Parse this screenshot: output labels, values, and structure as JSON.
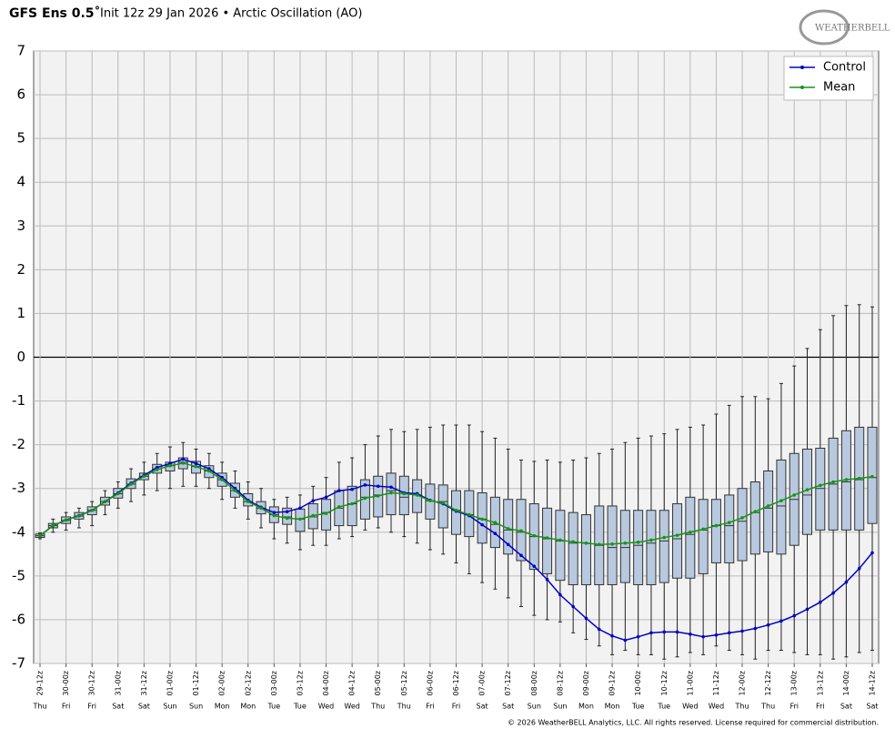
{
  "chart_data": {
    "type": "box",
    "title": "GFS Ens 0.5˚",
    "subtitle": "Init 12z 29 Jan 2026 • Arctic Oscillation (AO)",
    "logo": "WEATHERBELL",
    "footer": "© 2026 WeatherBELL Analytics, LLC. All rights reserved. License required for commercial distribution.",
    "categories": [
      "29-12z",
      null,
      "30-00z",
      null,
      "30-12z",
      null,
      "31-00z",
      null,
      "31-12z",
      null,
      "01-00z",
      null,
      "01-12z",
      null,
      "02-00z",
      null,
      "02-12z",
      null,
      "03-00z",
      null,
      "03-12z",
      null,
      "04-00z",
      null,
      "04-12z",
      null,
      "05-00z",
      null,
      "05-12z",
      null,
      "06-00z",
      null,
      "06-12z",
      null,
      "07-00z",
      null,
      "07-12z",
      null,
      "08-00z",
      null,
      "08-12z",
      null,
      "09-00z",
      null,
      "09-12z",
      null,
      "10-00z",
      null,
      "10-12z",
      null,
      "11-00z",
      null,
      "11-12z",
      null,
      "12-00z",
      null,
      "12-12z",
      null,
      "13-00z",
      null,
      "13-12z",
      null,
      "14-00z",
      null,
      "14-12z"
    ],
    "day_labels": [
      "Thu",
      null,
      "Fri",
      null,
      "Fri",
      null,
      "Sat",
      null,
      "Sat",
      null,
      "Sun",
      null,
      "Sun",
      null,
      "Mon",
      null,
      "Mon",
      null,
      "Tue",
      null,
      "Tue",
      null,
      "Wed",
      null,
      "Wed",
      null,
      "Thu",
      null,
      "Thu",
      null,
      "Fri",
      null,
      "Fri",
      null,
      "Sat",
      null,
      "Sat",
      null,
      "Sun",
      null,
      "Sun",
      null,
      "Mon",
      null,
      "Mon",
      null,
      "Tue",
      null,
      "Tue",
      null,
      "Wed",
      null,
      "Wed",
      null,
      "Thu",
      null,
      "Thu",
      null,
      "Fri",
      null,
      "Fri",
      null,
      "Sat",
      null,
      "Sat"
    ],
    "ylim": [
      -7,
      7
    ],
    "yticks": [
      -7,
      -6,
      -5,
      -4,
      -3,
      -2,
      -1,
      0,
      1,
      2,
      3,
      4,
      5,
      6,
      7
    ],
    "grid": true,
    "legend": "upper right",
    "boxes": {
      "color": "#b8c9df",
      "min": [
        -4.15,
        -4.0,
        -3.95,
        -3.9,
        -3.85,
        -3.6,
        -3.45,
        -3.3,
        -3.15,
        -3.05,
        -3.0,
        -2.95,
        -2.95,
        -3.0,
        -3.25,
        -3.45,
        -3.7,
        -3.9,
        -4.15,
        -4.25,
        -4.4,
        -4.3,
        -4.3,
        -4.15,
        -4.1,
        -3.95,
        -3.9,
        -4.0,
        -4.1,
        -4.25,
        -4.4,
        -4.5,
        -4.7,
        -4.95,
        -5.15,
        -5.3,
        -5.5,
        -5.7,
        -5.9,
        -6.0,
        -6.05,
        -6.3,
        -6.45,
        -6.6,
        -6.8,
        -6.7,
        -6.8,
        -6.8,
        -6.9,
        -6.85,
        -6.75,
        -6.8,
        -6.6,
        -6.7,
        -6.8,
        -6.9,
        -6.7,
        -6.7,
        -6.75,
        -6.8,
        -6.8,
        -6.9,
        -6.85,
        -6.75,
        -6.7
      ],
      "q1": [
        -4.12,
        -3.9,
        -3.8,
        -3.7,
        -3.6,
        -3.38,
        -3.22,
        -3.0,
        -2.8,
        -2.65,
        -2.6,
        -2.55,
        -2.65,
        -2.75,
        -2.95,
        -3.2,
        -3.4,
        -3.58,
        -3.78,
        -3.82,
        -3.98,
        -3.92,
        -3.95,
        -3.85,
        -3.85,
        -3.7,
        -3.65,
        -3.6,
        -3.6,
        -3.55,
        -3.7,
        -3.9,
        -4.05,
        -4.1,
        -4.25,
        -4.35,
        -4.5,
        -4.65,
        -4.85,
        -4.95,
        -5.1,
        -5.2,
        -5.2,
        -5.2,
        -5.2,
        -5.15,
        -5.2,
        -5.2,
        -5.15,
        -5.05,
        -5.05,
        -4.95,
        -4.7,
        -4.7,
        -4.65,
        -4.5,
        -4.45,
        -4.5,
        -4.3,
        -4.05,
        -3.95,
        -3.95,
        -3.95,
        -3.95,
        -3.8
      ],
      "median": [
        -4.08,
        -3.85,
        -3.73,
        -3.63,
        -3.5,
        -3.3,
        -3.12,
        -2.9,
        -2.72,
        -2.55,
        -2.48,
        -2.4,
        -2.5,
        -2.6,
        -2.8,
        -3.05,
        -3.3,
        -3.45,
        -3.6,
        -3.65,
        -3.7,
        -3.65,
        -3.55,
        -3.45,
        -3.35,
        -3.2,
        -3.15,
        -3.05,
        -3.2,
        -3.15,
        -3.28,
        -3.3,
        -3.5,
        -3.6,
        -3.7,
        -3.82,
        -3.95,
        -4.0,
        -4.1,
        -4.15,
        -4.2,
        -4.25,
        -4.25,
        -4.3,
        -4.35,
        -4.35,
        -4.3,
        -4.25,
        -4.2,
        -4.15,
        -4.05,
        -3.95,
        -3.85,
        -3.85,
        -3.75,
        -3.55,
        -3.45,
        -3.4,
        -3.25,
        -3.15,
        -3.0,
        -2.9,
        -2.85,
        -2.8,
        -2.75
      ],
      "q3": [
        -4.04,
        -3.8,
        -3.65,
        -3.55,
        -3.42,
        -3.2,
        -3.0,
        -2.78,
        -2.65,
        -2.45,
        -2.4,
        -2.3,
        -2.38,
        -2.48,
        -2.65,
        -2.88,
        -3.12,
        -3.3,
        -3.42,
        -3.45,
        -3.47,
        -3.35,
        -3.25,
        -3.05,
        -2.95,
        -2.8,
        -2.72,
        -2.65,
        -2.72,
        -2.8,
        -2.9,
        -2.92,
        -3.05,
        -3.05,
        -3.1,
        -3.2,
        -3.25,
        -3.25,
        -3.35,
        -3.45,
        -3.5,
        -3.55,
        -3.6,
        -3.4,
        -3.4,
        -3.5,
        -3.5,
        -3.5,
        -3.5,
        -3.35,
        -3.2,
        -3.25,
        -3.25,
        -3.15,
        -3.0,
        -2.85,
        -2.6,
        -2.35,
        -2.2,
        -2.1,
        -2.08,
        -1.85,
        -1.68,
        -1.6,
        -1.6
      ],
      "max": [
        -4.02,
        -3.7,
        -3.55,
        -3.45,
        -3.3,
        -3.05,
        -2.85,
        -2.55,
        -2.4,
        -2.2,
        -2.05,
        -1.95,
        -2.1,
        -2.2,
        -2.4,
        -2.6,
        -2.85,
        -3.0,
        -3.25,
        -3.2,
        -3.15,
        -2.95,
        -2.75,
        -2.4,
        -2.3,
        -2.0,
        -1.8,
        -1.65,
        -1.7,
        -1.65,
        -1.6,
        -1.55,
        -1.55,
        -1.55,
        -1.7,
        -1.85,
        -2.1,
        -2.35,
        -2.38,
        -2.35,
        -2.4,
        -2.35,
        -2.3,
        -2.2,
        -2.1,
        -1.95,
        -1.85,
        -1.8,
        -1.75,
        -1.65,
        -1.6,
        -1.55,
        -1.3,
        -1.1,
        -0.9,
        -0.9,
        -0.95,
        -0.6,
        -0.2,
        0.2,
        0.63,
        0.95,
        1.18,
        1.2,
        1.15
      ]
    },
    "series": [
      {
        "name": "Control",
        "color": "#0000c8",
        "values": [
          -4.08,
          -3.85,
          -3.72,
          -3.62,
          -3.5,
          -3.3,
          -3.1,
          -2.88,
          -2.7,
          -2.52,
          -2.43,
          -2.33,
          -2.43,
          -2.55,
          -2.75,
          -3.0,
          -3.27,
          -3.43,
          -3.55,
          -3.53,
          -3.45,
          -3.28,
          -3.2,
          -3.05,
          -3.02,
          -2.92,
          -2.95,
          -2.97,
          -3.1,
          -3.12,
          -3.27,
          -3.35,
          -3.52,
          -3.62,
          -3.83,
          -4.03,
          -4.28,
          -4.53,
          -4.78,
          -5.08,
          -5.43,
          -5.7,
          -5.97,
          -6.22,
          -6.37,
          -6.47,
          -6.39,
          -6.3,
          -6.28,
          -6.28,
          -6.33,
          -6.39,
          -6.35,
          -6.3,
          -6.26,
          -6.2,
          -6.12,
          -6.03,
          -5.91,
          -5.76,
          -5.6,
          -5.39,
          -5.14,
          -4.83,
          -4.47
        ]
      },
      {
        "name": "Mean",
        "color": "#149614",
        "values": [
          -4.08,
          -3.85,
          -3.72,
          -3.63,
          -3.5,
          -3.3,
          -3.12,
          -2.9,
          -2.72,
          -2.57,
          -2.48,
          -2.42,
          -2.5,
          -2.6,
          -2.8,
          -3.05,
          -3.3,
          -3.45,
          -3.62,
          -3.68,
          -3.7,
          -3.62,
          -3.57,
          -3.42,
          -3.35,
          -3.22,
          -3.17,
          -3.1,
          -3.12,
          -3.15,
          -3.28,
          -3.33,
          -3.5,
          -3.6,
          -3.7,
          -3.78,
          -3.92,
          -3.97,
          -4.08,
          -4.13,
          -4.18,
          -4.22,
          -4.25,
          -4.28,
          -4.27,
          -4.25,
          -4.23,
          -4.18,
          -4.12,
          -4.07,
          -4.0,
          -3.93,
          -3.85,
          -3.78,
          -3.67,
          -3.53,
          -3.4,
          -3.28,
          -3.15,
          -3.03,
          -2.93,
          -2.85,
          -2.8,
          -2.77,
          -2.73
        ]
      }
    ]
  }
}
